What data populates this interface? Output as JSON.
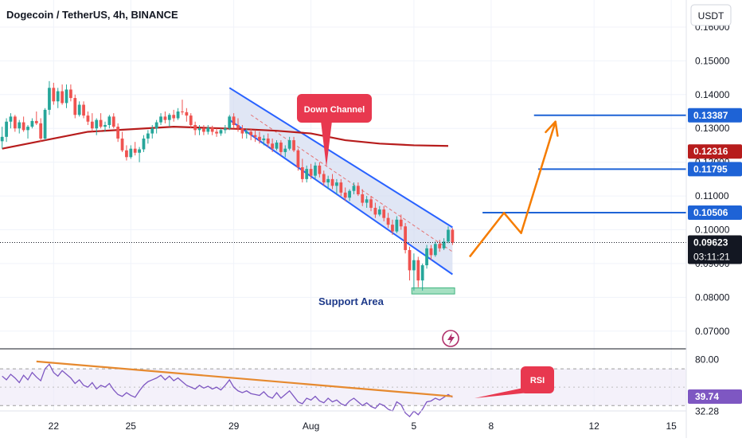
{
  "header": {
    "title": "Dogecoin / TetherUS, 4h, BINANCE",
    "currency": "USDT"
  },
  "colors": {
    "bull": "#26a69a",
    "bear": "#ef5350",
    "ma": "#b71c1c",
    "channel": "#2962ff",
    "level": "#1e63d6",
    "arrow": "#f57c00",
    "support": "#7fd3a8",
    "rsi": "#7e57c2",
    "callout": "#e8384f",
    "trendline": "#e6892e"
  },
  "chart_data": {
    "type": "candlestick",
    "symbol": "Dogecoin / TetherUS",
    "interval": "4h",
    "exchange": "BINANCE",
    "ylim": [
      0.065,
      0.168
    ],
    "y_ticks": [
      "0.16000",
      "0.15000",
      "0.14000",
      "0.13000",
      "0.12000",
      "0.11000",
      "0.10000",
      "0.09000",
      "0.08000",
      "0.07000"
    ],
    "x_ticks": [
      {
        "label": "22",
        "bar": 12
      },
      {
        "label": "25",
        "bar": 30
      },
      {
        "label": "29",
        "bar": 54
      },
      {
        "label": "Aug",
        "bar": 72
      },
      {
        "label": "5",
        "bar": 96
      },
      {
        "label": "8",
        "bar": 114
      },
      {
        "label": "12",
        "bar": 138
      },
      {
        "label": "15",
        "bar": 156
      }
    ],
    "total_bars": 160,
    "ohlc": [
      [
        0.1262,
        0.1305,
        0.124,
        0.1275
      ],
      [
        0.1275,
        0.133,
        0.126,
        0.132
      ],
      [
        0.132,
        0.1345,
        0.13,
        0.1335
      ],
      [
        0.1335,
        0.134,
        0.129,
        0.13
      ],
      [
        0.13,
        0.1325,
        0.1285,
        0.1318
      ],
      [
        0.1318,
        0.1335,
        0.129,
        0.1295
      ],
      [
        0.1295,
        0.131,
        0.127,
        0.1305
      ],
      [
        0.1305,
        0.133,
        0.13,
        0.1322
      ],
      [
        0.1322,
        0.135,
        0.131,
        0.1315
      ],
      [
        0.1315,
        0.133,
        0.126,
        0.127
      ],
      [
        0.127,
        0.136,
        0.1265,
        0.1355
      ],
      [
        0.1355,
        0.144,
        0.134,
        0.142
      ],
      [
        0.142,
        0.1435,
        0.137,
        0.138
      ],
      [
        0.138,
        0.142,
        0.136,
        0.141
      ],
      [
        0.141,
        0.143,
        0.137,
        0.1375
      ],
      [
        0.1375,
        0.143,
        0.136,
        0.1415
      ],
      [
        0.1415,
        0.143,
        0.138,
        0.139
      ],
      [
        0.139,
        0.14,
        0.133,
        0.134
      ],
      [
        0.134,
        0.138,
        0.1335,
        0.137
      ],
      [
        0.137,
        0.138,
        0.133,
        0.1338
      ],
      [
        0.1338,
        0.135,
        0.131,
        0.132
      ],
      [
        0.132,
        0.1345,
        0.129,
        0.13
      ],
      [
        0.13,
        0.133,
        0.128,
        0.1325
      ],
      [
        0.1325,
        0.1345,
        0.13,
        0.1305
      ],
      [
        0.1305,
        0.132,
        0.129,
        0.131
      ],
      [
        0.131,
        0.134,
        0.13,
        0.1335
      ],
      [
        0.1335,
        0.1345,
        0.13,
        0.1305
      ],
      [
        0.1305,
        0.1315,
        0.126,
        0.127
      ],
      [
        0.127,
        0.129,
        0.123,
        0.1235
      ],
      [
        0.1235,
        0.125,
        0.1205,
        0.1215
      ],
      [
        0.1215,
        0.125,
        0.121,
        0.124
      ],
      [
        0.124,
        0.126,
        0.122,
        0.1228
      ],
      [
        0.1228,
        0.1245,
        0.12,
        0.1238
      ],
      [
        0.1238,
        0.128,
        0.123,
        0.127
      ],
      [
        0.127,
        0.1295,
        0.1255,
        0.1285
      ],
      [
        0.1285,
        0.131,
        0.127,
        0.13
      ],
      [
        0.13,
        0.1325,
        0.1285,
        0.1318
      ],
      [
        0.1318,
        0.1345,
        0.131,
        0.1335
      ],
      [
        0.1335,
        0.135,
        0.1315,
        0.1325
      ],
      [
        0.1325,
        0.1345,
        0.1305,
        0.134
      ],
      [
        0.134,
        0.1355,
        0.132,
        0.133
      ],
      [
        0.133,
        0.136,
        0.1325,
        0.135
      ],
      [
        0.135,
        0.1385,
        0.134,
        0.1348
      ],
      [
        0.1348,
        0.136,
        0.132,
        0.1338
      ],
      [
        0.1338,
        0.1345,
        0.13,
        0.131
      ],
      [
        0.131,
        0.132,
        0.128,
        0.1295
      ],
      [
        0.1295,
        0.131,
        0.128,
        0.13
      ],
      [
        0.13,
        0.131,
        0.128,
        0.129
      ],
      [
        0.129,
        0.131,
        0.1282,
        0.1302
      ],
      [
        0.1302,
        0.1308,
        0.128,
        0.129
      ],
      [
        0.129,
        0.13,
        0.1275,
        0.1285
      ],
      [
        0.1285,
        0.13,
        0.1278,
        0.1295
      ],
      [
        0.1295,
        0.131,
        0.1285,
        0.13
      ],
      [
        0.13,
        0.134,
        0.1295,
        0.1335
      ],
      [
        0.1335,
        0.1345,
        0.13,
        0.131
      ],
      [
        0.131,
        0.133,
        0.129,
        0.13
      ],
      [
        0.13,
        0.131,
        0.127,
        0.1285
      ],
      [
        0.1285,
        0.13,
        0.127,
        0.129
      ],
      [
        0.129,
        0.13,
        0.1265,
        0.128
      ],
      [
        0.128,
        0.1295,
        0.126,
        0.1275
      ],
      [
        0.1275,
        0.129,
        0.1255,
        0.1265
      ],
      [
        0.1265,
        0.128,
        0.125,
        0.127
      ],
      [
        0.127,
        0.1285,
        0.1245,
        0.1255
      ],
      [
        0.1255,
        0.127,
        0.123,
        0.124
      ],
      [
        0.124,
        0.1265,
        0.1235,
        0.1258
      ],
      [
        0.1258,
        0.1265,
        0.122,
        0.123
      ],
      [
        0.123,
        0.125,
        0.1215,
        0.124
      ],
      [
        0.124,
        0.1275,
        0.1235,
        0.1265
      ],
      [
        0.1265,
        0.1275,
        0.123,
        0.1235
      ],
      [
        0.1235,
        0.124,
        0.1175,
        0.1185
      ],
      [
        0.1185,
        0.121,
        0.114,
        0.115
      ],
      [
        0.115,
        0.119,
        0.114,
        0.118
      ],
      [
        0.118,
        0.1195,
        0.115,
        0.116
      ],
      [
        0.116,
        0.12,
        0.115,
        0.119
      ],
      [
        0.119,
        0.12,
        0.1155,
        0.1165
      ],
      [
        0.1165,
        0.1175,
        0.113,
        0.114
      ],
      [
        0.114,
        0.116,
        0.112,
        0.115
      ],
      [
        0.115,
        0.1165,
        0.112,
        0.113
      ],
      [
        0.113,
        0.115,
        0.1105,
        0.114
      ],
      [
        0.114,
        0.115,
        0.11,
        0.111
      ],
      [
        0.111,
        0.1125,
        0.1085,
        0.1095
      ],
      [
        0.1095,
        0.112,
        0.1085,
        0.1115
      ],
      [
        0.1115,
        0.114,
        0.1105,
        0.113
      ],
      [
        0.113,
        0.114,
        0.11,
        0.1105
      ],
      [
        0.1105,
        0.112,
        0.107,
        0.108
      ],
      [
        0.108,
        0.11,
        0.1065,
        0.109
      ],
      [
        0.109,
        0.11,
        0.1055,
        0.1065
      ],
      [
        0.1065,
        0.108,
        0.1035,
        0.1045
      ],
      [
        0.1045,
        0.107,
        0.104,
        0.106
      ],
      [
        0.106,
        0.107,
        0.1025,
        0.1035
      ],
      [
        0.1035,
        0.105,
        0.1005,
        0.1015
      ],
      [
        0.1015,
        0.103,
        0.0985,
        0.0995
      ],
      [
        0.0995,
        0.104,
        0.099,
        0.103
      ],
      [
        0.103,
        0.1045,
        0.1,
        0.101
      ],
      [
        0.101,
        0.102,
        0.093,
        0.094
      ],
      [
        0.094,
        0.095,
        0.085,
        0.088
      ],
      [
        0.088,
        0.093,
        0.082,
        0.091
      ],
      [
        0.091,
        0.092,
        0.083,
        0.085
      ],
      [
        0.085,
        0.09,
        0.082,
        0.0895
      ],
      [
        0.0895,
        0.0955,
        0.0885,
        0.0945
      ],
      [
        0.0945,
        0.0955,
        0.091,
        0.0925
      ],
      [
        0.0925,
        0.0965,
        0.092,
        0.0958
      ],
      [
        0.0958,
        0.097,
        0.0935,
        0.0945
      ],
      [
        0.0945,
        0.0975,
        0.094,
        0.0965
      ],
      [
        0.0965,
        0.101,
        0.096,
        0.1
      ],
      [
        0.1,
        0.1005,
        0.0955,
        0.0962
      ]
    ],
    "ma": [
      0.124,
      0.129,
      0.1305,
      0.1298,
      0.1293,
      0.1285,
      0.1265,
      0.1255,
      0.125,
      0.1248
    ],
    "ma_bars": [
      0,
      20,
      40,
      56,
      64,
      72,
      80,
      88,
      96,
      104
    ],
    "channel": {
      "upper": {
        "bar": [
          53,
          105
        ],
        "price": [
          0.142,
          0.1007
        ]
      },
      "lower": {
        "bar": [
          53,
          105
        ],
        "price": [
          0.1325,
          0.0868
        ]
      },
      "mid_dashed": {
        "bar": [
          58,
          105
        ],
        "price": [
          0.134,
          0.0935
        ]
      }
    },
    "levels": [
      {
        "price": 0.13387,
        "label": "0.13387",
        "from_bar": 124
      },
      {
        "price": 0.11795,
        "label": "0.11795",
        "from_bar": 125
      },
      {
        "price": 0.10506,
        "label": "0.10506",
        "from_bar": 112
      }
    ],
    "projection": {
      "bars": [
        109,
        117,
        121,
        129
      ],
      "prices": [
        0.092,
        0.105,
        0.099,
        0.132
      ]
    },
    "support": {
      "from_bar": 96,
      "to_bar": 105,
      "low": 0.081,
      "high": 0.0828,
      "label": "Support Area"
    },
    "annotations": [
      {
        "text": "Down Channel",
        "kind": "callout"
      },
      {
        "text": "RSI",
        "kind": "callout"
      }
    ],
    "price_labels": {
      "current": "0.09623",
      "current_price": 0.09623,
      "countdown": "03:11:21",
      "ma_value": "0.12316",
      "ma_price": 0.12316
    },
    "rsi": {
      "ylim": [
        25,
        90
      ],
      "ticks": [
        "80.00",
        "32.28"
      ],
      "upper_band": 70,
      "lower_band": 30,
      "current": "39.74",
      "current_value": 39.74,
      "values": [
        62,
        58,
        64,
        60,
        55,
        63,
        58,
        66,
        61,
        57,
        70,
        75,
        66,
        62,
        68,
        64,
        60,
        54,
        58,
        52,
        50,
        55,
        48,
        52,
        50,
        54,
        47,
        42,
        40,
        44,
        41,
        39,
        46,
        52,
        56,
        58,
        60,
        63,
        58,
        62,
        57,
        60,
        56,
        52,
        50,
        48,
        52,
        49,
        51,
        48,
        50,
        47,
        52,
        58,
        50,
        46,
        44,
        46,
        43,
        42,
        41,
        45,
        40,
        38,
        44,
        38,
        42,
        46,
        40,
        34,
        32,
        38,
        36,
        40,
        35,
        33,
        38,
        34,
        36,
        32,
        30,
        35,
        38,
        34,
        30,
        33,
        29,
        27,
        32,
        30,
        26,
        24,
        34,
        31,
        22,
        18,
        24,
        20,
        26,
        34,
        35,
        38,
        36,
        39,
        42,
        39
      ],
      "trendline": {
        "bar": [
          8,
          105
        ],
        "value": [
          78,
          40
        ]
      }
    }
  }
}
